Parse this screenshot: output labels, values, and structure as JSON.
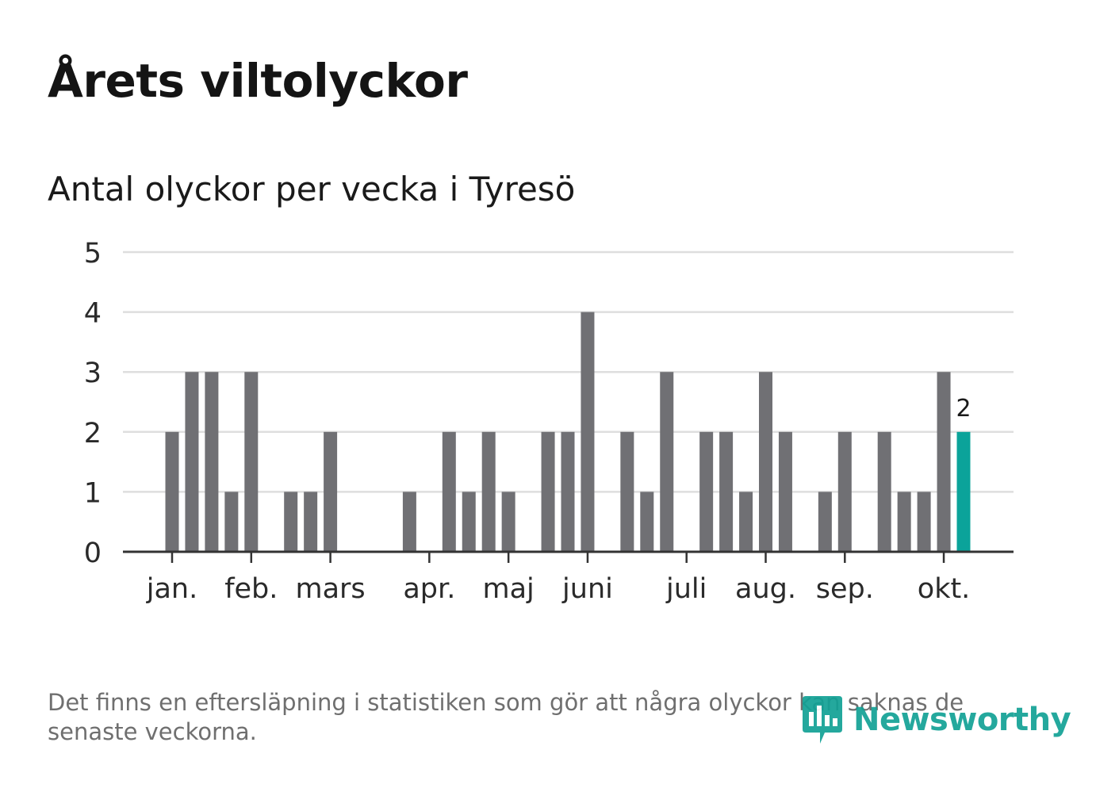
{
  "title": "Årets viltolyckor",
  "subtitle": "Antal olyckor per vecka i Tyresö",
  "footnote": "Det finns en eftersläpning i statistiken som gör att några olyckor kan saknas de senaste veckorna.",
  "brand": "Newsworthy",
  "colors": {
    "bar": "#707074",
    "highlight": "#0ba39a",
    "grid": "#dedede",
    "axis": "#333333",
    "brand": "#12a195"
  },
  "chart_data": {
    "type": "bar",
    "title": "Antal olyckor per vecka i Tyresö",
    "xlabel": "",
    "ylabel": "",
    "ylim": [
      0,
      5
    ],
    "y_ticks": [
      0,
      1,
      2,
      3,
      4,
      5
    ],
    "grid": true,
    "weeks": [
      1,
      2,
      3,
      4,
      5,
      6,
      7,
      8,
      9,
      10,
      11,
      12,
      13,
      14,
      15,
      16,
      17,
      18,
      19,
      20,
      21,
      22,
      23,
      24,
      25,
      26,
      27,
      28,
      29,
      30,
      31,
      32,
      33,
      34,
      35,
      36,
      37,
      38,
      39,
      40,
      41
    ],
    "values": [
      2,
      3,
      3,
      1,
      3,
      0,
      1,
      1,
      2,
      0,
      0,
      0,
      1,
      0,
      2,
      1,
      2,
      1,
      0,
      2,
      2,
      4,
      0,
      2,
      1,
      3,
      0,
      2,
      2,
      1,
      3,
      2,
      0,
      1,
      2,
      0,
      2,
      1,
      1,
      3,
      2
    ],
    "highlight_index": 40,
    "highlight_label": "2",
    "month_labels": [
      {
        "label": "jan.",
        "week": 1
      },
      {
        "label": "feb.",
        "week": 5
      },
      {
        "label": "mars",
        "week": 9
      },
      {
        "label": "apr.",
        "week": 14
      },
      {
        "label": "maj",
        "week": 18
      },
      {
        "label": "juni",
        "week": 22
      },
      {
        "label": "juli",
        "week": 27
      },
      {
        "label": "aug.",
        "week": 31
      },
      {
        "label": "sep.",
        "week": 35
      },
      {
        "label": "okt.",
        "week": 40
      }
    ]
  }
}
